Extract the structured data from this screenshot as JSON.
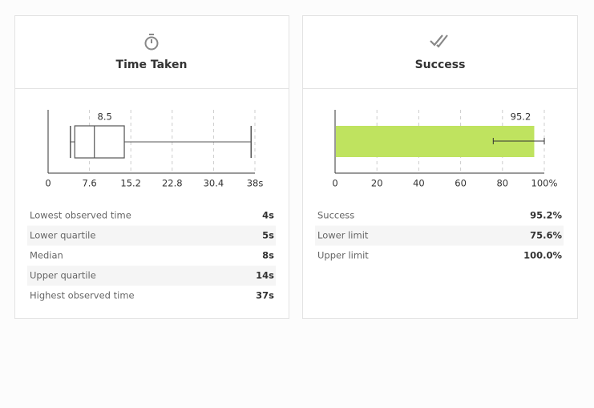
{
  "chart_data": [
    {
      "type": "boxplot",
      "title": "Time Taken",
      "min": 4.1,
      "q1": 4.9,
      "median": 8.5,
      "q3": 14,
      "max": 37.3,
      "xlim": [
        0,
        38
      ],
      "xticks": [
        0,
        7.6,
        15.2,
        22.8,
        30.4,
        {
          "value": 38,
          "label": "38s"
        }
      ],
      "color": "#555555",
      "grid": true
    },
    {
      "type": "bar",
      "title": "Success",
      "values": [
        95.2
      ],
      "lower": [
        75.6
      ],
      "upper": [
        100
      ],
      "xlim": [
        0,
        100
      ],
      "xticks": [
        0,
        20,
        40,
        60,
        80,
        {
          "value": 100,
          "label": "100%"
        }
      ],
      "color": "#bfe35f",
      "grid": true
    }
  ],
  "stats": [
    [
      [
        "Lowest observed time",
        "4s"
      ],
      [
        "Lower quartile",
        "5s"
      ],
      [
        "Median",
        "8s"
      ],
      [
        "Upper quartile",
        "14s"
      ],
      [
        "Highest observed time",
        "37s"
      ]
    ],
    [
      [
        "Success",
        "95.2%"
      ],
      [
        "Lower limit",
        "75.6%"
      ],
      [
        "Upper limit",
        "100.0%"
      ]
    ]
  ]
}
